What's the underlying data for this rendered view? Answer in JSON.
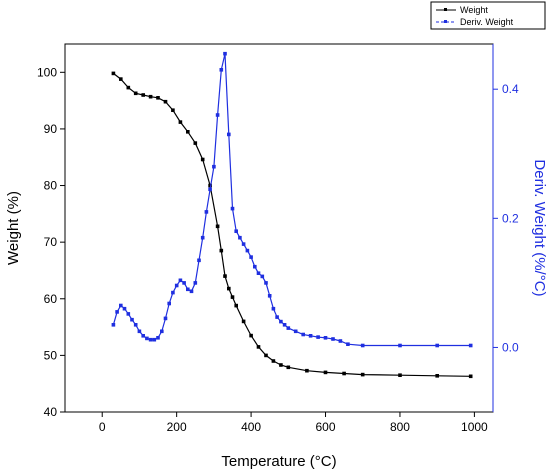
{
  "chart_data": {
    "type": "line",
    "xlabel": "Temperature (°C)",
    "ylabel_left": "Weight (%)",
    "ylabel_right": "Deriv. Weight (%/°C)",
    "xlim": [
      -100,
      1050
    ],
    "ylim_left": [
      40,
      105
    ],
    "ylim_right": [
      -0.1,
      0.47
    ],
    "x_ticks": [
      0,
      200,
      400,
      600,
      800,
      1000
    ],
    "y_ticks_left": [
      40,
      50,
      60,
      70,
      80,
      90,
      100
    ],
    "y_ticks_right": [
      0.0,
      0.2,
      0.4
    ],
    "y_ticks_right_labels": [
      "0.0",
      "0.2",
      "0.4"
    ],
    "grid": false,
    "legend_position": "top-right-outside",
    "series": [
      {
        "name": "Weight",
        "axis": "left",
        "color": "#000000",
        "marker": "square",
        "x": [
          30,
          50,
          70,
          90,
          110,
          130,
          150,
          170,
          190,
          210,
          230,
          250,
          270,
          290,
          310,
          320,
          330,
          340,
          350,
          360,
          380,
          400,
          420,
          440,
          460,
          480,
          500,
          550,
          600,
          650,
          700,
          800,
          900,
          990
        ],
        "values": [
          99.8,
          98.8,
          97.3,
          96.3,
          96.0,
          95.7,
          95.5,
          94.8,
          93.3,
          91.2,
          89.5,
          87.5,
          84.6,
          80.0,
          72.8,
          68.5,
          64.0,
          61.8,
          60.3,
          58.8,
          56.0,
          53.5,
          51.5,
          50.0,
          49.0,
          48.3,
          47.9,
          47.3,
          47.0,
          46.8,
          46.6,
          46.5,
          46.4,
          46.3
        ]
      },
      {
        "name": "Deriv. Weight",
        "axis": "right",
        "color": "#1f2fe0",
        "marker": "square",
        "x": [
          30,
          40,
          50,
          60,
          70,
          80,
          90,
          100,
          110,
          120,
          130,
          140,
          150,
          160,
          170,
          180,
          190,
          200,
          210,
          220,
          230,
          240,
          250,
          260,
          270,
          280,
          290,
          300,
          310,
          320,
          330,
          340,
          350,
          360,
          370,
          380,
          390,
          400,
          410,
          420,
          430,
          440,
          450,
          460,
          470,
          480,
          490,
          500,
          520,
          540,
          560,
          580,
          600,
          620,
          640,
          660,
          700,
          800,
          900,
          990
        ],
        "values": [
          0.035,
          0.055,
          0.065,
          0.06,
          0.052,
          0.043,
          0.035,
          0.025,
          0.018,
          0.014,
          0.012,
          0.012,
          0.015,
          0.025,
          0.045,
          0.068,
          0.085,
          0.096,
          0.104,
          0.1,
          0.09,
          0.087,
          0.1,
          0.135,
          0.17,
          0.21,
          0.245,
          0.28,
          0.36,
          0.43,
          0.455,
          0.33,
          0.215,
          0.18,
          0.17,
          0.16,
          0.15,
          0.14,
          0.125,
          0.115,
          0.11,
          0.1,
          0.08,
          0.06,
          0.047,
          0.04,
          0.035,
          0.03,
          0.025,
          0.02,
          0.018,
          0.016,
          0.015,
          0.013,
          0.01,
          0.005,
          0.003,
          0.003,
          0.003,
          0.003
        ]
      }
    ]
  }
}
